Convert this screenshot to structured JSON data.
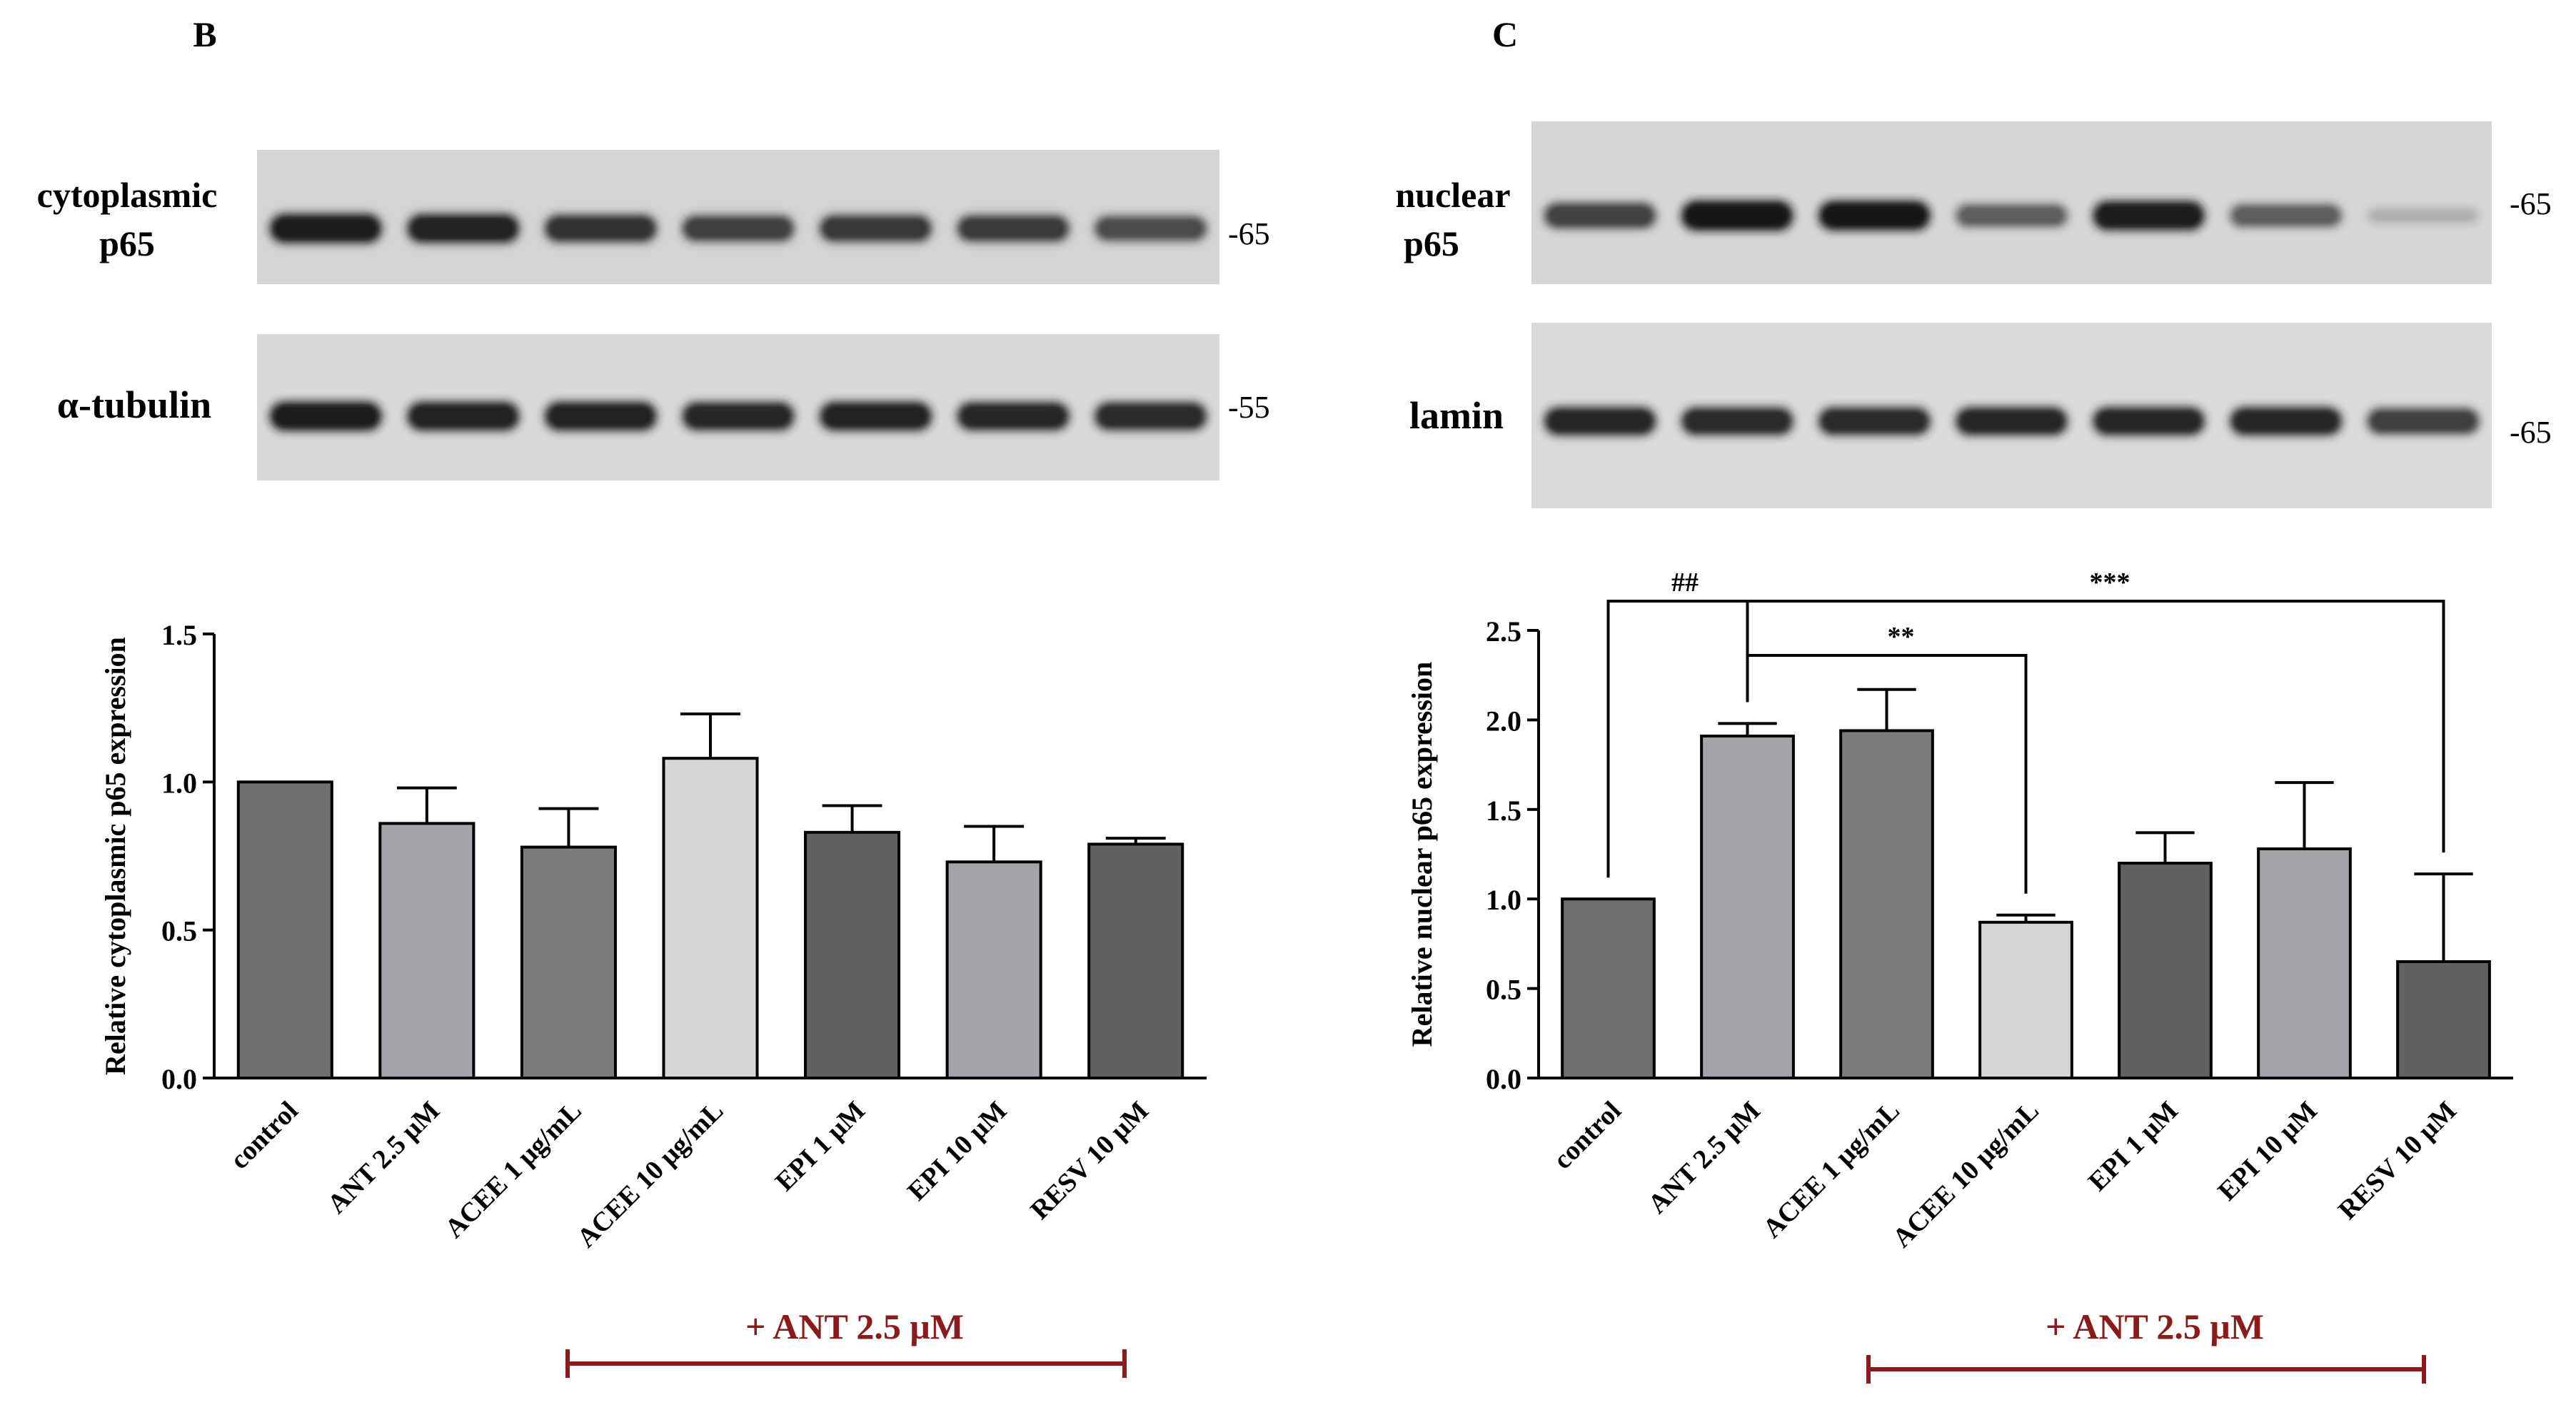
{
  "panels": {
    "b": {
      "letter": "B",
      "blots": [
        {
          "label_lines": [
            "cytoplasmic",
            "p65"
          ],
          "marker": "-65",
          "intensities": [
            0.9,
            0.88,
            0.8,
            0.72,
            0.76,
            0.74,
            0.66
          ]
        },
        {
          "label_lines": [
            "α-tubulin"
          ],
          "marker": "-55",
          "intensities": [
            0.9,
            0.88,
            0.88,
            0.85,
            0.88,
            0.85,
            0.83
          ]
        }
      ],
      "bracket_label": "+ ANT 2.5 μM"
    },
    "c": {
      "letter": "C",
      "blots": [
        {
          "label_lines": [
            "nuclear",
            "p65"
          ],
          "marker": "-65",
          "intensities": [
            0.7,
            0.95,
            0.92,
            0.55,
            0.9,
            0.55,
            0.12
          ]
        },
        {
          "label_lines": [
            "lamin"
          ],
          "marker": "-65",
          "intensities": [
            0.85,
            0.82,
            0.82,
            0.84,
            0.85,
            0.85,
            0.72
          ]
        }
      ],
      "bracket_label": "+ ANT 2.5 μM"
    }
  },
  "chart_data": [
    {
      "type": "bar",
      "categories": [
        "control",
        "ANT 2.5 μM",
        "ACEE 1 μg/mL",
        "ACEE 10 μg/mL",
        "EPI 1 μM",
        "EPI 10 μM",
        "RESV 10 μM"
      ],
      "values": [
        1.0,
        0.86,
        0.78,
        1.08,
        0.83,
        0.73,
        0.79
      ],
      "errors": [
        0.0,
        0.12,
        0.13,
        0.15,
        0.09,
        0.12,
        0.02
      ],
      "bar_colors": [
        "#6e6e6e",
        "#a4a3aa",
        "#7c7c7c",
        "#d6d6d6",
        "#616161",
        "#a4a3aa",
        "#616161"
      ],
      "ylabel": "Relative cytoplasmic p65 expression",
      "ylim": [
        0,
        1.5
      ],
      "yticks": [
        "0.0",
        "0.5",
        "1.0",
        "1.5"
      ],
      "significance": []
    },
    {
      "type": "bar",
      "categories": [
        "control",
        "ANT 2.5 μM",
        "ACEE 1 μg/mL",
        "ACEE 10 μg/mL",
        "EPI 1 μM",
        "EPI 10 μM",
        "RESV 10 μM"
      ],
      "values": [
        1.0,
        1.91,
        1.94,
        0.87,
        1.2,
        1.28,
        0.65
      ],
      "errors": [
        0.0,
        0.07,
        0.23,
        0.04,
        0.17,
        0.37,
        0.49
      ],
      "bar_colors": [
        "#6e6e6e",
        "#a4a3aa",
        "#7c7c7c",
        "#d6d6d6",
        "#616161",
        "#a4a3aa",
        "#616161"
      ],
      "ylabel": "Relative nuclear p65 expression",
      "ylim": [
        0,
        2.5
      ],
      "yticks": [
        "0.0",
        "0.5",
        "1.0",
        "1.5",
        "2.0",
        "2.5"
      ],
      "significance": [
        {
          "from": 0,
          "to": 1,
          "label": "##"
        },
        {
          "from": 1,
          "to": 3,
          "label": "**"
        },
        {
          "from": 1,
          "to": 6,
          "label": "***"
        }
      ]
    }
  ]
}
